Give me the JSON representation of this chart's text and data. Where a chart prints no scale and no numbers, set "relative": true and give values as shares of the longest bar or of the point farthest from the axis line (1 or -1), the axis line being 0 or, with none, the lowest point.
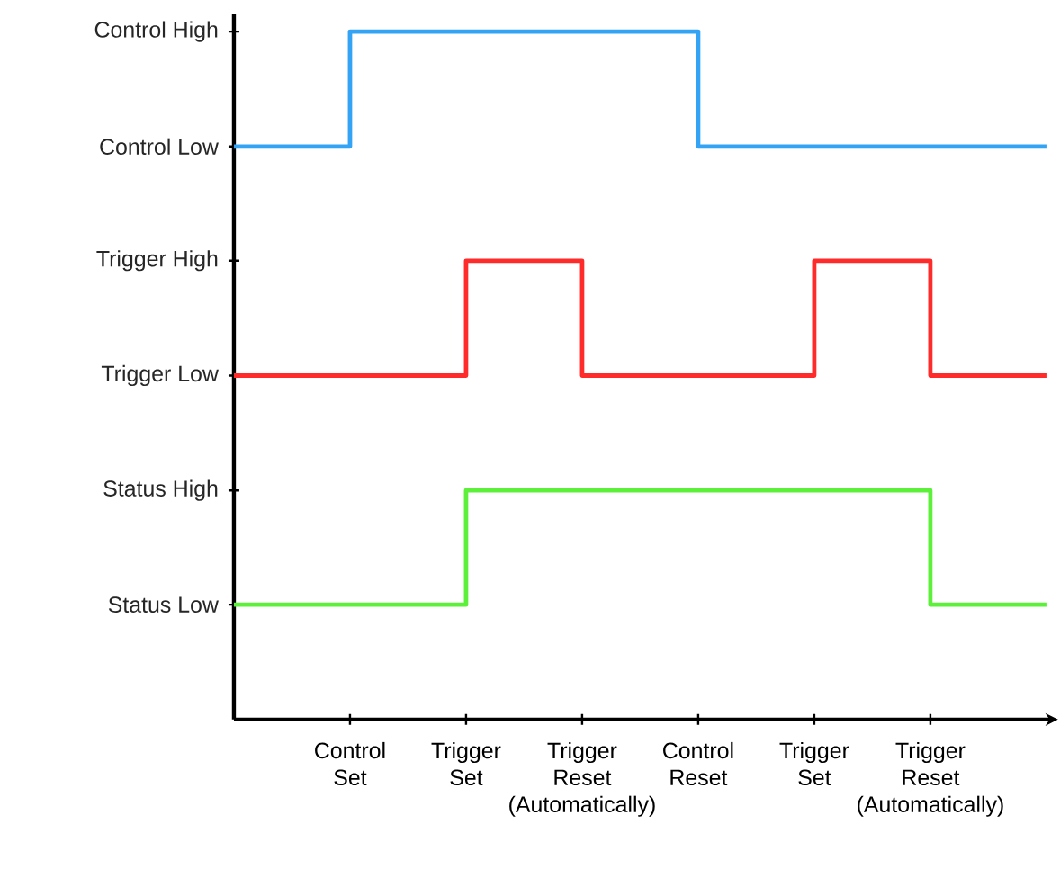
{
  "chart_data": {
    "type": "step",
    "marker": "none",
    "line_style": "solid",
    "relative": true,
    "categories": [
      null,
      "Control Set",
      "Trigger Set",
      "Trigger Reset (Automatically)",
      "Control Reset",
      "Trigger Set",
      "Trigger Reset (Automatically)",
      null
    ],
    "annotations": [
      "Control High",
      "Control Low",
      "Trigger High",
      "Trigger Low",
      "Status High",
      "Status Low"
    ],
    "series": [
      {
        "color": "#33a3f5",
        "values": [
          0.833,
          1,
          1,
          1,
          0.833,
          0.833,
          0.833,
          0.833
        ]
      },
      {
        "color": "#ff2a2a",
        "values": [
          0.5,
          0.5,
          0.667,
          0.5,
          0.5,
          0.667,
          0.5,
          0.5
        ]
      },
      {
        "color": "#5cf03a",
        "values": [
          0.167,
          0.167,
          0.333,
          0.333,
          0.333,
          0.333,
          0.167,
          0.167
        ]
      }
    ]
  }
}
